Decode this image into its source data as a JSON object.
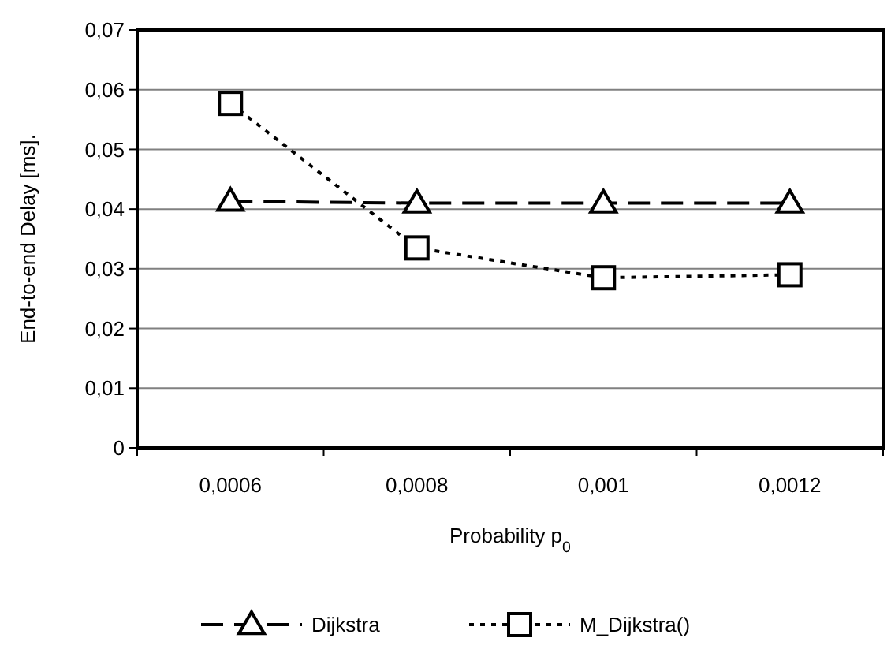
{
  "chart_data": {
    "type": "line",
    "xlabel": "Probability p$_{0}$",
    "ylabel": "End-to-end Delay [ms].",
    "categories": [
      "0,0006",
      "0,0008",
      "0,001",
      "0,0012"
    ],
    "ylim": [
      0,
      0.07
    ],
    "yticks": [
      {
        "value": 0,
        "label": "0"
      },
      {
        "value": 0.01,
        "label": "0,01"
      },
      {
        "value": 0.02,
        "label": "0,02"
      },
      {
        "value": 0.03,
        "label": "0,03"
      },
      {
        "value": 0.04,
        "label": "0,04"
      },
      {
        "value": 0.05,
        "label": "0,05"
      },
      {
        "value": 0.06,
        "label": "0,06"
      },
      {
        "value": 0.07,
        "label": "0,07"
      }
    ],
    "grid": "y",
    "legend": "bottom",
    "series": [
      {
        "name": "Dijkstra",
        "color": "#000000",
        "marker": "triangle",
        "line_style": "dashed",
        "values": [
          0.0413,
          0.041,
          0.041,
          0.041
        ]
      },
      {
        "name": "M_Dijkstra()",
        "color": "#000000",
        "marker": "square",
        "line_style": "dotted",
        "values": [
          0.0577,
          0.0335,
          0.0285,
          0.029
        ]
      }
    ]
  }
}
